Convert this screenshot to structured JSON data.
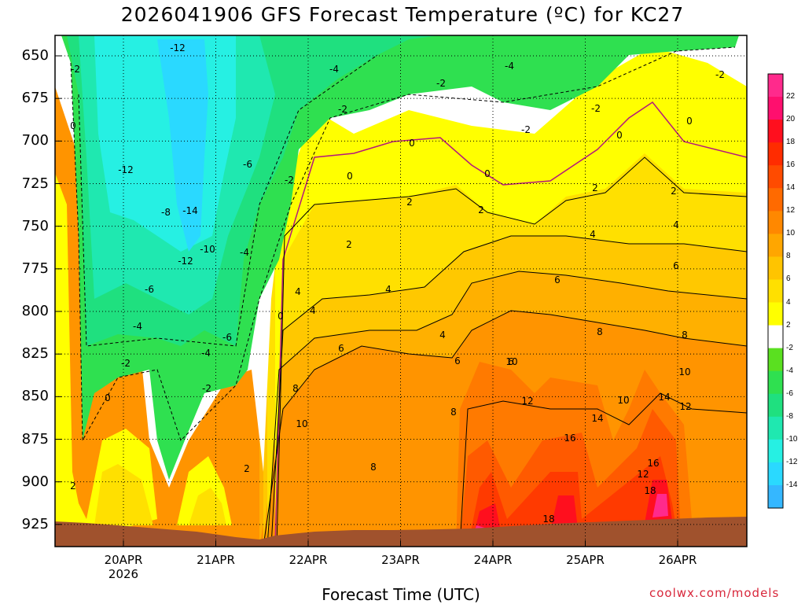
{
  "chart_data": {
    "type": "heatmap",
    "title": "2026041906 GFS Forecast Temperature (ºC) for KC27",
    "xlabel": "Forecast Time (UTC)",
    "ylabel": "",
    "credit": "coolwx.com/models",
    "y_ticks": [
      650,
      675,
      700,
      725,
      750,
      775,
      800,
      825,
      850,
      875,
      900,
      925
    ],
    "ylim": [
      638,
      938
    ],
    "x_ticks": [
      "20APR",
      "21APR",
      "22APR",
      "23APR",
      "24APR",
      "25APR",
      "26APR"
    ],
    "x_year": "2026",
    "colorbar": {
      "levels": [
        "-14",
        "-12",
        "-10",
        "-8",
        "-6",
        "-4",
        "-2",
        "2",
        "4",
        "6",
        "8",
        "10",
        "12",
        "14",
        "16",
        "18",
        "20",
        "22"
      ],
      "colors": [
        "#35b7ff",
        "#2ad9ff",
        "#26f0e3",
        "#1fe8b0",
        "#1fe07f",
        "#2fe050",
        "#5ae020",
        "#ffffff",
        "#ffff00",
        "#ffe000",
        "#ffc400",
        "#ffa600",
        "#ff8800",
        "#ff6a00",
        "#ff4b00",
        "#ff2c00",
        "#ff0f1e",
        "#ff0f6e",
        "#ff2a8c"
      ]
    },
    "contour_labels": [
      "-12",
      "-12",
      "-14",
      "-8",
      "-12",
      "-10",
      "-6",
      "-4",
      "-6",
      "-4",
      "-6",
      "-4",
      "-2",
      "-2",
      "-2",
      "-2",
      "-4",
      "-2",
      "-2",
      "-2",
      "-4",
      "-2",
      "-2",
      "0",
      "0",
      "0",
      "0",
      "0",
      "0",
      "0",
      "0",
      "2",
      "2",
      "2",
      "2",
      "2",
      "2",
      "2",
      "4",
      "4",
      "4",
      "4",
      "4",
      "4",
      "6",
      "6",
      "6",
      "6",
      "6",
      "8",
      "8",
      "8",
      "8",
      "8",
      "10",
      "10",
      "10",
      "10",
      "12",
      "12",
      "12",
      "14",
      "14",
      "16",
      "16",
      "18",
      "18"
    ]
  }
}
